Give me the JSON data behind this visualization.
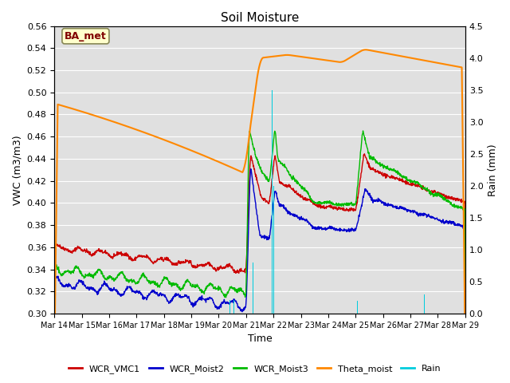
{
  "title": "Soil Moisture",
  "xlabel": "Time",
  "ylabel_left": "VWC (m3/m3)",
  "ylabel_right": "Rain (mm)",
  "ylim_left": [
    0.3,
    0.56
  ],
  "ylim_right": [
    0.0,
    4.5
  ],
  "yticks_left": [
    0.3,
    0.32,
    0.34,
    0.36,
    0.38,
    0.4,
    0.42,
    0.44,
    0.46,
    0.48,
    0.5,
    0.52,
    0.54,
    0.56
  ],
  "yticks_right": [
    0.0,
    0.5,
    1.0,
    1.5,
    2.0,
    2.5,
    3.0,
    3.5,
    4.0,
    4.5
  ],
  "xtick_labels": [
    "Mar 14",
    "Mar 15",
    "Mar 16",
    "Mar 17",
    "Mar 18",
    "Mar 19",
    "Mar 20",
    "Mar 21",
    "Mar 22",
    "Mar 23",
    "Mar 24",
    "Mar 25",
    "Mar 26",
    "Mar 27",
    "Mar 28",
    "Mar 29"
  ],
  "colors": {
    "WCR_VMC1": "#cc0000",
    "WCR_Moist2": "#0000cc",
    "WCR_Moist3": "#00bb00",
    "Theta_moist": "#ff8800",
    "Rain": "#00ccdd"
  },
  "annotation_text": "BA_met",
  "annotation_color": "#800000",
  "annotation_bg": "#ffffcc",
  "grid_color": "#ffffff",
  "bg_color": "#e0e0e0"
}
